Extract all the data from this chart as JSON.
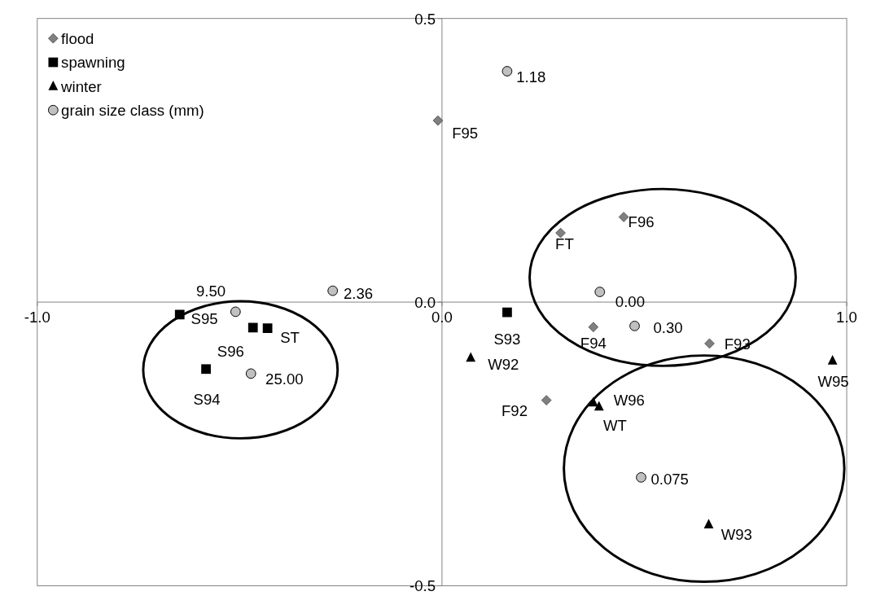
{
  "chart_data": {
    "type": "scatter",
    "xlim": [
      -1,
      1
    ],
    "ylim": [
      -0.5,
      0.5
    ],
    "xticks": [
      {
        "value": -1,
        "label": "-1.0"
      },
      {
        "value": 0,
        "label": "0.0"
      },
      {
        "value": 1,
        "label": "1.0"
      }
    ],
    "yticks": [
      {
        "value": -0.5,
        "label": "-0.5"
      },
      {
        "value": 0,
        "label": "0.0"
      },
      {
        "value": 0.5,
        "label": "0.5"
      }
    ],
    "grid": false,
    "legend": "top left",
    "series": [
      {
        "name": "flood",
        "color": "#808080",
        "marker": "diamond",
        "x": [
          -0.01,
          0.449,
          0.293,
          0.374,
          0.661,
          0.258
        ],
        "values": [
          0.32,
          0.15,
          0.122,
          -0.044,
          -0.073,
          -0.173
        ]
      },
      {
        "name": "spawning",
        "color": "#000000",
        "marker": "square",
        "x": [
          -0.648,
          -0.467,
          -0.431,
          -0.583,
          0.161
        ],
        "values": [
          -0.022,
          -0.045,
          -0.046,
          -0.118,
          -0.018
        ]
      },
      {
        "name": "winter",
        "color": "#000000",
        "marker": "triangle",
        "x": [
          0.071,
          0.374,
          0.388,
          0.965,
          0.659
        ],
        "values": [
          -0.098,
          -0.177,
          -0.184,
          -0.103,
          -0.392
        ]
      },
      {
        "name": "grain size class (mm)",
        "color": "#c0c0c0",
        "marker": "circle",
        "x": [
          0.161,
          -0.27,
          -0.51,
          -0.472,
          0.39,
          0.476,
          0.492
        ],
        "values": [
          0.407,
          0.02,
          -0.017,
          -0.126,
          0.018,
          -0.042,
          -0.309
        ]
      }
    ],
    "annotations": [
      {
        "text": "1.18",
        "x": 0.161,
        "y": 0.407
      },
      {
        "text": "F95",
        "x": -0.01,
        "y": 0.32
      },
      {
        "text": "F96",
        "x": 0.449,
        "y": 0.15
      },
      {
        "text": "FT",
        "x": 0.293,
        "y": 0.122
      },
      {
        "text": "2.36",
        "x": -0.27,
        "y": 0.02
      },
      {
        "text": "9.50",
        "x": -0.51,
        "y": -0.017
      },
      {
        "text": "S95",
        "x": -0.648,
        "y": -0.022
      },
      {
        "text": "ST",
        "x": -0.431,
        "y": -0.046
      },
      {
        "text": "S96",
        "x": -0.467,
        "y": -0.045
      },
      {
        "text": "S94",
        "x": -0.583,
        "y": -0.118
      },
      {
        "text": "25.00",
        "x": -0.472,
        "y": -0.126
      },
      {
        "text": "S93",
        "x": 0.161,
        "y": -0.018
      },
      {
        "text": "0.00",
        "x": 0.39,
        "y": 0.018
      },
      {
        "text": "0.30",
        "x": 0.476,
        "y": -0.042
      },
      {
        "text": "F94",
        "x": 0.374,
        "y": -0.044
      },
      {
        "text": "F93",
        "x": 0.661,
        "y": -0.073
      },
      {
        "text": "W92",
        "x": 0.071,
        "y": -0.098
      },
      {
        "text": "W95",
        "x": 0.965,
        "y": -0.103
      },
      {
        "text": "F92",
        "x": 0.258,
        "y": -0.173
      },
      {
        "text": "W96",
        "x": 0.374,
        "y": -0.177
      },
      {
        "text": "WT",
        "x": 0.388,
        "y": -0.184
      },
      {
        "text": "0.075",
        "x": 0.492,
        "y": -0.309
      },
      {
        "text": "W93",
        "x": 0.659,
        "y": -0.392
      }
    ]
  }
}
